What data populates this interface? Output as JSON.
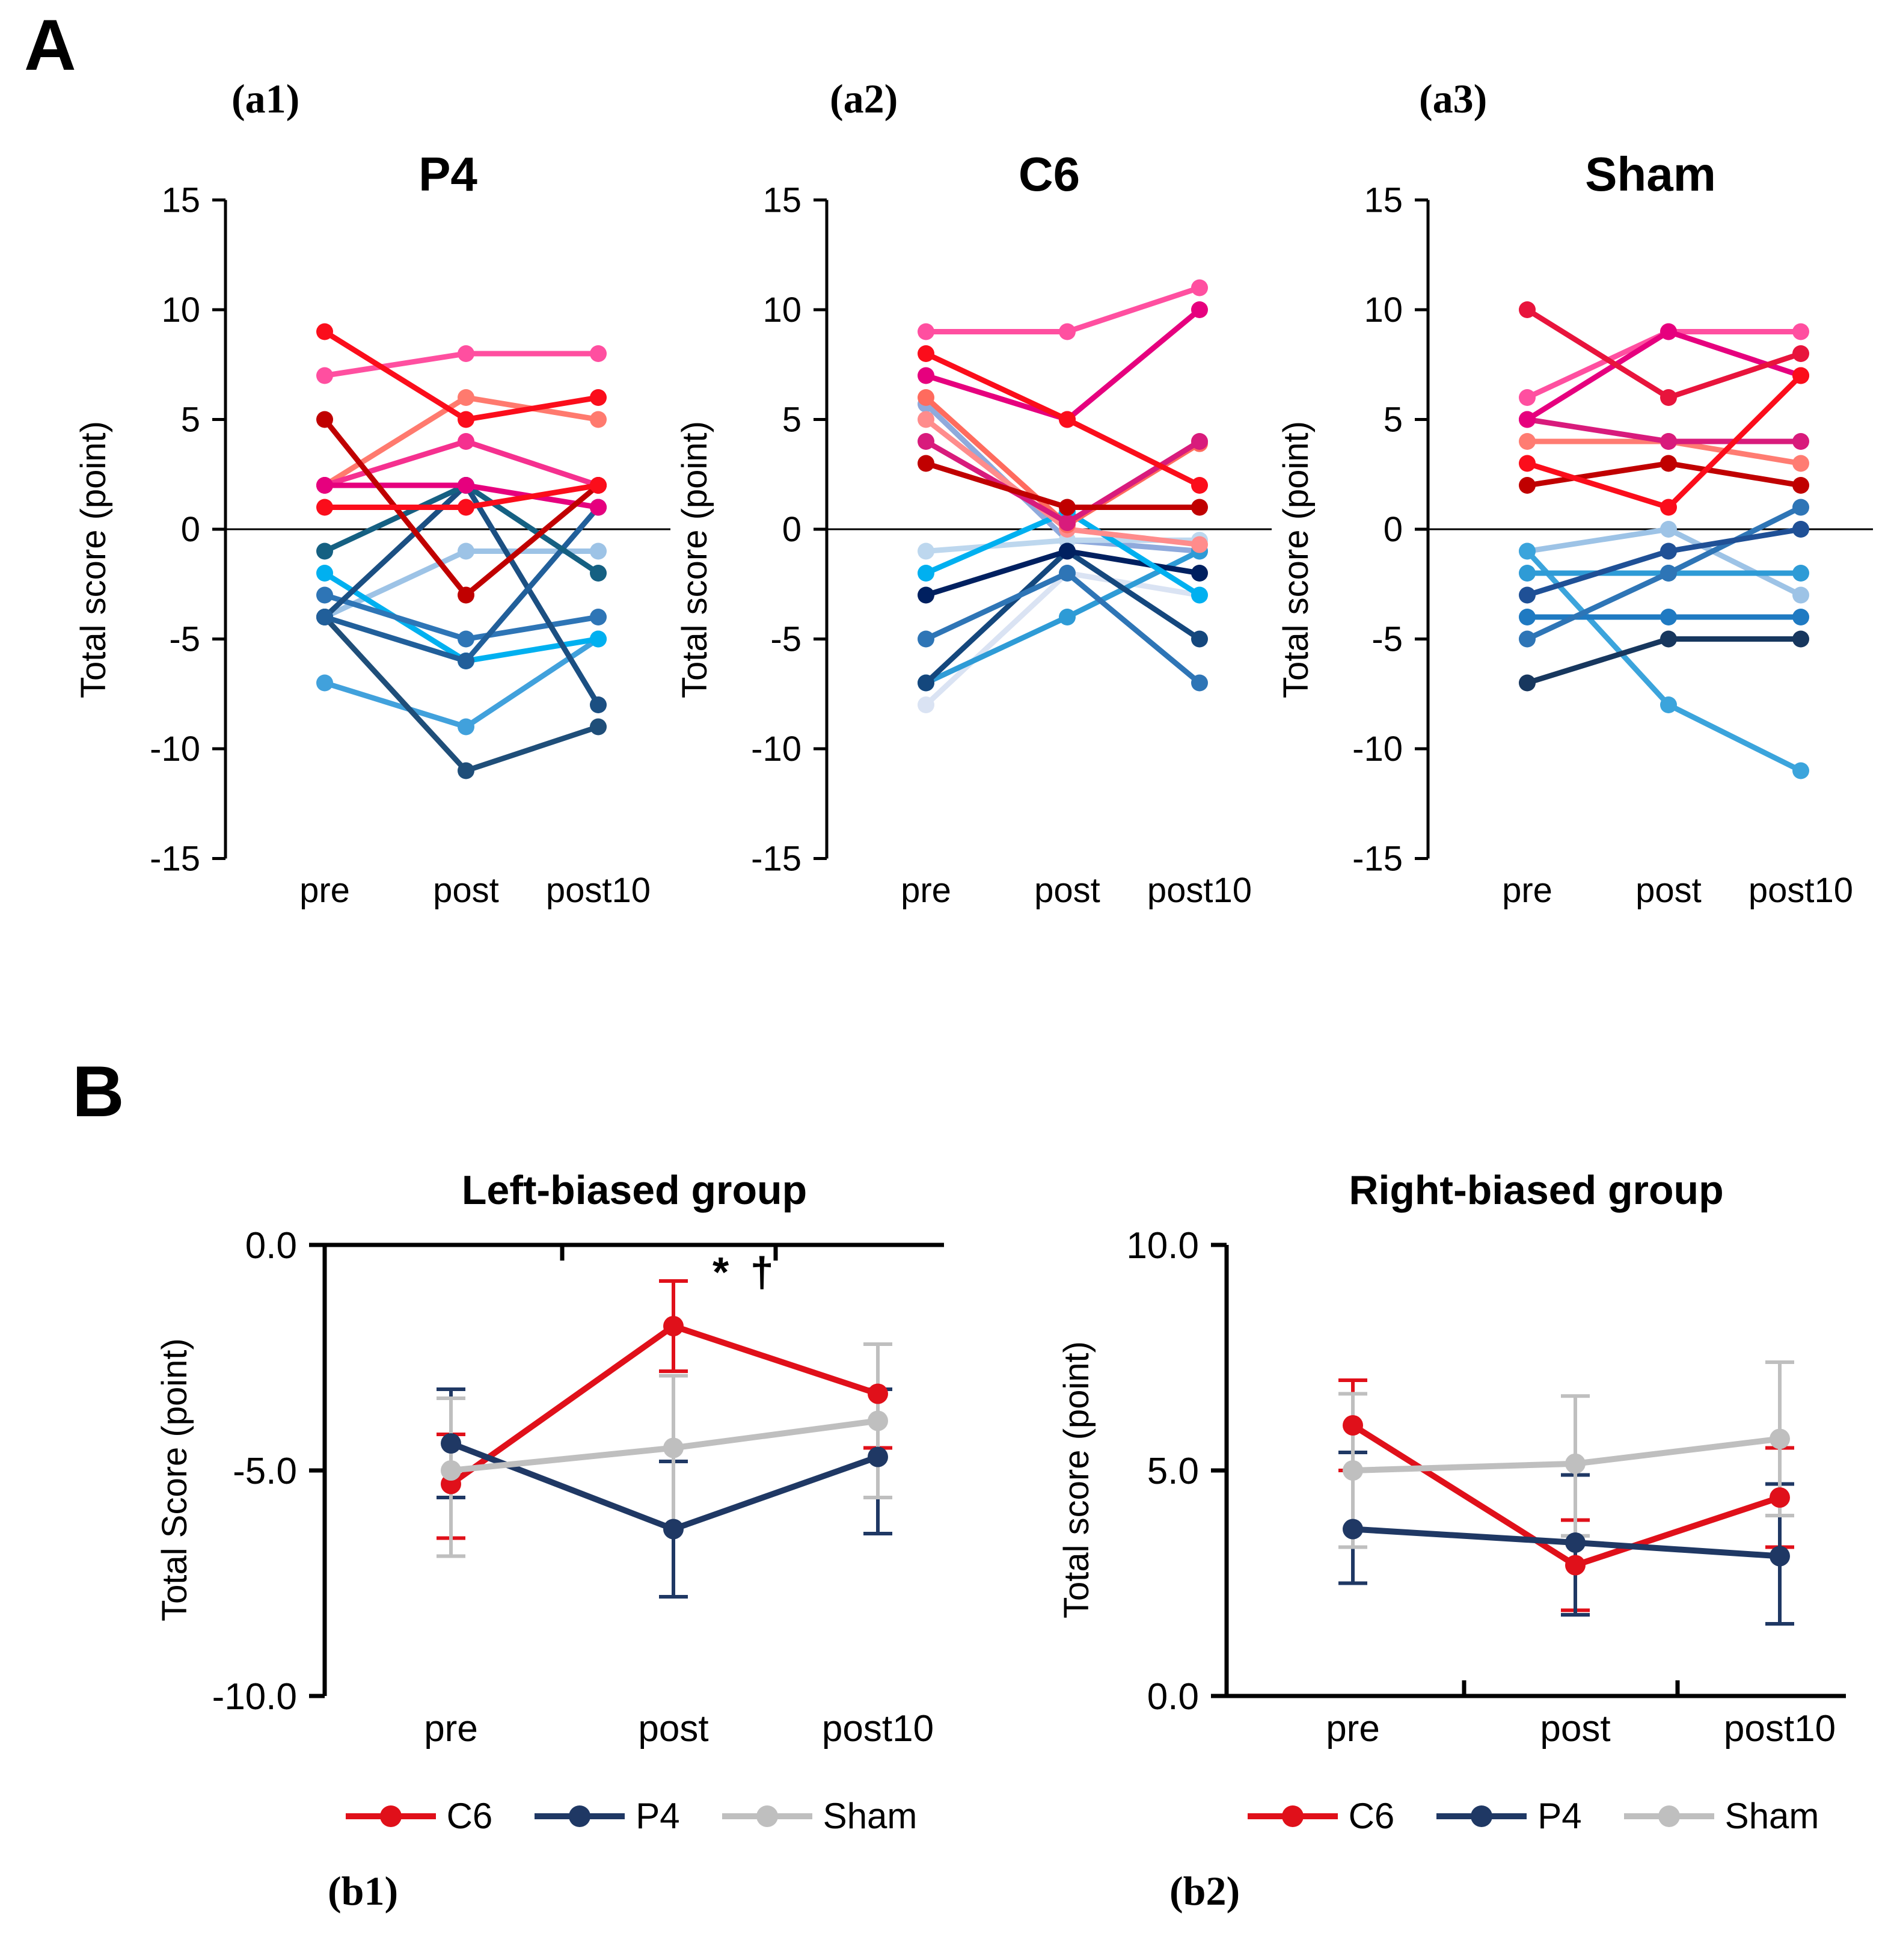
{
  "panel_a_label": "A",
  "panel_b_label": "B",
  "chart_data": [
    {
      "id": "a1",
      "type": "line",
      "sublabel": "(a1)",
      "title": "P4",
      "ylabel": "Total score (point)",
      "categories": [
        "pre",
        "post",
        "post10"
      ],
      "yticks": [
        15,
        10,
        5,
        0,
        -5,
        -10,
        -15
      ],
      "ylim": [
        -15,
        15
      ],
      "grid": false,
      "legend_position": "none",
      "series": [
        {
          "color": "#9dc3e6",
          "values": [
            -4,
            -1,
            -1
          ]
        },
        {
          "color": "#41a1dc",
          "values": [
            -7,
            -9,
            -5
          ]
        },
        {
          "color": "#00b0f0",
          "values": [
            -2,
            -6,
            -5
          ]
        },
        {
          "color": "#2e75b6",
          "values": [
            -3,
            -5,
            -4
          ]
        },
        {
          "color": "#1f4e79",
          "values": [
            -4,
            -11,
            -9
          ]
        },
        {
          "color": "#1b4f82",
          "values": [
            -4,
            2,
            -8
          ]
        },
        {
          "color": "#215f9a",
          "values": [
            -4,
            -6,
            1
          ]
        },
        {
          "color": "#156082",
          "values": [
            -1,
            2,
            -2
          ]
        },
        {
          "color": "#ff4fa0",
          "values": [
            7,
            8,
            8
          ]
        },
        {
          "color": "#ff7a6e",
          "values": [
            2,
            6,
            5
          ]
        },
        {
          "color": "#f5308f",
          "values": [
            2,
            4,
            2
          ]
        },
        {
          "color": "#e6007e",
          "values": [
            2,
            2,
            1
          ]
        },
        {
          "color": "#c00000",
          "values": [
            5,
            -3,
            2
          ]
        },
        {
          "color": "#fb0d1b",
          "values": [
            1,
            1,
            2
          ]
        },
        {
          "color": "#fb0d1b",
          "values": [
            9,
            5,
            6
          ]
        }
      ]
    },
    {
      "id": "a2",
      "type": "line",
      "sublabel": "(a2)",
      "title": "C6",
      "ylabel": "Total score (point)",
      "categories": [
        "pre",
        "post",
        "post10"
      ],
      "yticks": [
        15,
        10,
        5,
        0,
        -5,
        -10,
        -15
      ],
      "ylim": [
        -15,
        15
      ],
      "grid": false,
      "legend_position": "none",
      "series": [
        {
          "color": "#dae3f3",
          "values": [
            -8,
            -2,
            -3
          ]
        },
        {
          "color": "#8faadc",
          "values": [
            5.7,
            -0.5,
            -1
          ]
        },
        {
          "color": "#bdd7ee",
          "values": [
            -1,
            -0.5,
            -0.5
          ]
        },
        {
          "color": "#2e9bd6",
          "values": [
            -7,
            -4,
            -1
          ]
        },
        {
          "color": "#14477d",
          "values": [
            -7,
            -1,
            -5
          ]
        },
        {
          "color": "#002060",
          "values": [
            -3,
            -1,
            -2
          ]
        },
        {
          "color": "#2e75b6",
          "values": [
            -5,
            -2,
            -7
          ]
        },
        {
          "color": "#00b0f0",
          "values": [
            -2,
            0.8,
            -3
          ]
        },
        {
          "color": "#ff8c8c",
          "values": [
            5,
            0,
            -0.7
          ]
        },
        {
          "color": "#ff6b5e",
          "values": [
            6,
            0.2,
            3.9
          ]
        },
        {
          "color": "#d81b7c",
          "values": [
            4,
            0.3,
            4
          ]
        },
        {
          "color": "#c00000",
          "values": [
            3,
            1,
            1
          ]
        },
        {
          "color": "#e6007e",
          "values": [
            7,
            5,
            10
          ]
        },
        {
          "color": "#fb0d1b",
          "values": [
            8,
            5,
            2
          ]
        },
        {
          "color": "#ff4fa0",
          "values": [
            9,
            9,
            11
          ]
        }
      ]
    },
    {
      "id": "a3",
      "type": "line",
      "sublabel": "(a3)",
      "title": "Sham",
      "ylabel": "Total score (point)",
      "categories": [
        "pre",
        "post",
        "post10"
      ],
      "yticks": [
        15,
        10,
        5,
        0,
        -5,
        -10,
        -15
      ],
      "ylim": [
        -15,
        15
      ],
      "grid": false,
      "legend_position": "none",
      "series": [
        {
          "color": "#9dc3e6",
          "values": [
            -1,
            0,
            -3
          ]
        },
        {
          "color": "#3ba4dc",
          "values": [
            -1,
            -8,
            -11
          ]
        },
        {
          "color": "#2e9bd6",
          "values": [
            -2,
            -2,
            -2
          ]
        },
        {
          "color": "#1f7ac2",
          "values": [
            -4,
            -4,
            -4
          ]
        },
        {
          "color": "#2e75b6",
          "values": [
            -5,
            -2,
            1
          ]
        },
        {
          "color": "#1f5096",
          "values": [
            -3,
            -1,
            0
          ]
        },
        {
          "color": "#17375e",
          "values": [
            -7,
            -5,
            -5
          ]
        },
        {
          "color": "#ff7c72",
          "values": [
            4,
            4,
            3
          ]
        },
        {
          "color": "#d81b7c",
          "values": [
            5,
            4,
            4
          ]
        },
        {
          "color": "#c00000",
          "values": [
            2,
            3,
            2
          ]
        },
        {
          "color": "#ff4fa0",
          "values": [
            6,
            9,
            9
          ]
        },
        {
          "color": "#e6007e",
          "values": [
            5,
            9,
            7
          ]
        },
        {
          "color": "#fb0d1b",
          "values": [
            3,
            1,
            7
          ]
        },
        {
          "color": "#e8143c",
          "values": [
            10,
            6,
            8
          ]
        }
      ]
    },
    {
      "id": "b1",
      "type": "line-errorbar",
      "sublabel": "(b1)",
      "title": "Left-biased group",
      "ylabel": "Total Score (point)",
      "categories": [
        "pre",
        "post",
        "post10"
      ],
      "ytick_labels": [
        "0.0",
        "-5.0",
        "-10.0"
      ],
      "yticks": [
        0,
        -5,
        -10
      ],
      "ylim": [
        -10,
        0
      ],
      "axis_side": "top",
      "grid": false,
      "legend_position": "bottom",
      "annotation": "* †",
      "series": [
        {
          "name": "C6",
          "color": "#e0101a",
          "values": [
            -5.3,
            -1.8,
            -3.3
          ],
          "err_up": [
            1.1,
            1.0,
            1.1
          ],
          "err_dn": [
            1.2,
            1.0,
            1.2
          ]
        },
        {
          "name": "P4",
          "color": "#1f3864",
          "values": [
            -4.4,
            -6.3,
            -4.7
          ],
          "err_up": [
            1.2,
            1.5,
            1.5
          ],
          "err_dn": [
            1.2,
            1.5,
            1.7
          ]
        },
        {
          "name": "Sham",
          "color": "#bfbfbf",
          "values": [
            -5.0,
            -4.5,
            -3.9
          ],
          "err_up": [
            1.6,
            1.6,
            1.7
          ],
          "err_dn": [
            1.9,
            1.7,
            1.7
          ]
        }
      ]
    },
    {
      "id": "b2",
      "type": "line-errorbar",
      "sublabel": "(b2)",
      "title": "Right-biased group",
      "ylabel": "Total score (point)",
      "categories": [
        "pre",
        "post",
        "post10"
      ],
      "ytick_labels": [
        "10.0",
        "5.0",
        "0.0"
      ],
      "yticks": [
        10,
        5,
        0
      ],
      "ylim": [
        0,
        10
      ],
      "axis_side": "bottom",
      "grid": false,
      "legend_position": "bottom",
      "annotation": "",
      "series": [
        {
          "name": "C6",
          "color": "#e0101a",
          "values": [
            6.0,
            2.9,
            4.4
          ],
          "err_up": [
            1.0,
            1.0,
            1.1
          ],
          "err_dn": [
            1.0,
            1.0,
            1.1
          ]
        },
        {
          "name": "P4",
          "color": "#1f3864",
          "values": [
            3.7,
            3.4,
            3.1
          ],
          "err_up": [
            1.7,
            1.5,
            1.6
          ],
          "err_dn": [
            1.2,
            1.6,
            1.5
          ]
        },
        {
          "name": "Sham",
          "color": "#bfbfbf",
          "values": [
            5.0,
            5.15,
            5.7
          ],
          "err_up": [
            1.7,
            1.5,
            1.7
          ],
          "err_dn": [
            1.7,
            1.6,
            1.7
          ]
        }
      ]
    }
  ]
}
